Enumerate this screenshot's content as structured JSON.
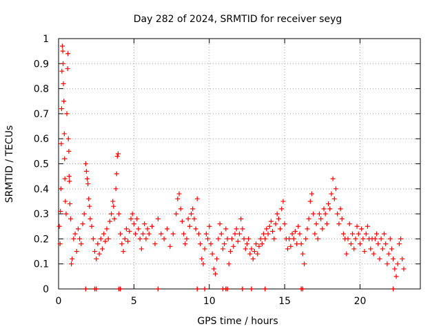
{
  "chart_data": {
    "type": "scatter",
    "title": "Day 282 of 2024, SRMTID for receiver seyg",
    "xlabel": "GPS time / hours",
    "ylabel": "SRMTID / TECUs",
    "xlim": [
      0,
      24
    ],
    "ylim": [
      0,
      1
    ],
    "xticks": [
      0,
      5,
      10,
      15,
      20
    ],
    "xtick_labels": [
      "0",
      "5",
      "10",
      "15",
      "20"
    ],
    "yticks": [
      0,
      0.1,
      0.2,
      0.3,
      0.4,
      0.5,
      0.6,
      0.7,
      0.8,
      0.9,
      1
    ],
    "ytick_labels": [
      "0",
      "0.1",
      "0.2",
      "0.3",
      "0.4",
      "0.5",
      "0.6",
      "0.7",
      "0.8",
      "0.9",
      "1"
    ],
    "grid": true,
    "marker": "+",
    "color": "#ff0000",
    "series": [
      {
        "name": "SRMTID",
        "points": [
          [
            0.05,
            0.25
          ],
          [
            0.1,
            0.18
          ],
          [
            0.12,
            0.31
          ],
          [
            0.15,
            0.4
          ],
          [
            0.18,
            0.58
          ],
          [
            0.2,
            0.72
          ],
          [
            0.22,
            0.87
          ],
          [
            0.25,
            0.97
          ],
          [
            0.28,
            0.95
          ],
          [
            0.3,
            0.9
          ],
          [
            0.32,
            0.82
          ],
          [
            0.35,
            0.75
          ],
          [
            0.38,
            0.62
          ],
          [
            0.4,
            0.52
          ],
          [
            0.42,
            0.44
          ],
          [
            0.45,
            0.35
          ],
          [
            0.5,
            0.3
          ],
          [
            0.55,
            0.7
          ],
          [
            0.6,
            0.88
          ],
          [
            0.62,
            0.94
          ],
          [
            0.65,
            0.6
          ],
          [
            0.68,
            0.55
          ],
          [
            0.7,
            0.45
          ],
          [
            0.72,
            0.43
          ],
          [
            0.75,
            0.34
          ],
          [
            0.8,
            0.28
          ],
          [
            0.85,
            0.1
          ],
          [
            0.9,
            0.12
          ],
          [
            1.0,
            0.2
          ],
          [
            1.1,
            0.22
          ],
          [
            1.2,
            0.15
          ],
          [
            1.3,
            0.24
          ],
          [
            1.4,
            0.2
          ],
          [
            1.5,
            0.18
          ],
          [
            1.6,
            0.26
          ],
          [
            1.7,
            0.3
          ],
          [
            1.8,
            0.5
          ],
          [
            1.85,
            0.47
          ],
          [
            1.9,
            0.44
          ],
          [
            1.95,
            0.42
          ],
          [
            2.0,
            0.36
          ],
          [
            2.05,
            0.33
          ],
          [
            2.1,
            0.28
          ],
          [
            2.2,
            0.25
          ],
          [
            2.3,
            0.2
          ],
          [
            2.4,
            0.15
          ],
          [
            2.5,
            0.12
          ],
          [
            2.6,
            0.18
          ],
          [
            2.7,
            0.14
          ],
          [
            2.8,
            0.2
          ],
          [
            2.9,
            0.16
          ],
          [
            3.0,
            0.22
          ],
          [
            3.1,
            0.19
          ],
          [
            3.2,
            0.24
          ],
          [
            3.3,
            0.2
          ],
          [
            3.4,
            0.27
          ],
          [
            3.5,
            0.3
          ],
          [
            3.6,
            0.35
          ],
          [
            3.65,
            0.33
          ],
          [
            3.7,
            0.28
          ],
          [
            3.8,
            0.4
          ],
          [
            3.85,
            0.46
          ],
          [
            3.9,
            0.53
          ],
          [
            3.95,
            0.54
          ],
          [
            4.0,
            0.3
          ],
          [
            4.1,
            0.22
          ],
          [
            4.2,
            0.18
          ],
          [
            4.3,
            0.15
          ],
          [
            4.4,
            0.2
          ],
          [
            4.5,
            0.24
          ],
          [
            4.6,
            0.19
          ],
          [
            4.7,
            0.23
          ],
          [
            4.8,
            0.28
          ],
          [
            4.9,
            0.3
          ],
          [
            5.0,
            0.26
          ],
          [
            5.1,
            0.22
          ],
          [
            5.2,
            0.28
          ],
          [
            5.3,
            0.24
          ],
          [
            5.4,
            0.2
          ],
          [
            5.5,
            0.16
          ],
          [
            5.6,
            0.22
          ],
          [
            5.7,
            0.26
          ],
          [
            5.8,
            0.2
          ],
          [
            5.9,
            0.24
          ],
          [
            6.0,
            0.22
          ],
          [
            6.2,
            0.25
          ],
          [
            6.4,
            0.18
          ],
          [
            6.6,
            0.28
          ],
          [
            6.8,
            0.22
          ],
          [
            7.0,
            0.2
          ],
          [
            7.2,
            0.24
          ],
          [
            7.4,
            0.17
          ],
          [
            7.6,
            0.22
          ],
          [
            7.8,
            0.3
          ],
          [
            7.9,
            0.36
          ],
          [
            8.0,
            0.38
          ],
          [
            8.1,
            0.32
          ],
          [
            8.2,
            0.27
          ],
          [
            8.3,
            0.22
          ],
          [
            8.4,
            0.18
          ],
          [
            8.5,
            0.2
          ],
          [
            8.6,
            0.28
          ],
          [
            8.7,
            0.25
          ],
          [
            8.8,
            0.3
          ],
          [
            8.9,
            0.32
          ],
          [
            9.0,
            0.28
          ],
          [
            9.1,
            0.24
          ],
          [
            9.2,
            0.36
          ],
          [
            9.3,
            0.22
          ],
          [
            9.4,
            0.18
          ],
          [
            9.5,
            0.12
          ],
          [
            9.6,
            0.1
          ],
          [
            9.7,
            0.16
          ],
          [
            9.8,
            0.22
          ],
          [
            9.9,
            0.2
          ],
          [
            10.0,
            0.25
          ],
          [
            10.1,
            0.18
          ],
          [
            10.2,
            0.14
          ],
          [
            10.3,
            0.08
          ],
          [
            10.4,
            0.06
          ],
          [
            10.5,
            0.12
          ],
          [
            10.6,
            0.2
          ],
          [
            10.7,
            0.26
          ],
          [
            10.8,
            0.22
          ],
          [
            10.9,
            0.16
          ],
          [
            11.0,
            0.18
          ],
          [
            11.1,
            0.24
          ],
          [
            11.2,
            0.2
          ],
          [
            11.3,
            0.1
          ],
          [
            11.4,
            0.15
          ],
          [
            11.5,
            0.2
          ],
          [
            11.6,
            0.17
          ],
          [
            11.7,
            0.22
          ],
          [
            11.8,
            0.24
          ],
          [
            11.9,
            0.19
          ],
          [
            12.0,
            0.22
          ],
          [
            12.1,
            0.28
          ],
          [
            12.2,
            0.24
          ],
          [
            12.3,
            0.2
          ],
          [
            12.4,
            0.16
          ],
          [
            12.5,
            0.18
          ],
          [
            12.6,
            0.2
          ],
          [
            12.7,
            0.14
          ],
          [
            12.8,
            0.16
          ],
          [
            12.9,
            0.12
          ],
          [
            13.0,
            0.15
          ],
          [
            13.1,
            0.18
          ],
          [
            13.2,
            0.14
          ],
          [
            13.3,
            0.17
          ],
          [
            13.4,
            0.2
          ],
          [
            13.5,
            0.18
          ],
          [
            13.6,
            0.22
          ],
          [
            13.7,
            0.2
          ],
          [
            13.8,
            0.24
          ],
          [
            13.9,
            0.22
          ],
          [
            14.0,
            0.25
          ],
          [
            14.1,
            0.27
          ],
          [
            14.2,
            0.23
          ],
          [
            14.3,
            0.2
          ],
          [
            14.4,
            0.26
          ],
          [
            14.5,
            0.3
          ],
          [
            14.6,
            0.28
          ],
          [
            14.7,
            0.24
          ],
          [
            14.8,
            0.32
          ],
          [
            14.9,
            0.35
          ],
          [
            15.0,
            0.26
          ],
          [
            15.1,
            0.2
          ],
          [
            15.2,
            0.16
          ],
          [
            15.3,
            0.2
          ],
          [
            15.4,
            0.17
          ],
          [
            15.5,
            0.22
          ],
          [
            15.6,
            0.2
          ],
          [
            15.7,
            0.23
          ],
          [
            15.8,
            0.18
          ],
          [
            15.9,
            0.25
          ],
          [
            16.0,
            0.22
          ],
          [
            16.1,
            0.18
          ],
          [
            16.2,
            0.14
          ],
          [
            16.3,
            0.1
          ],
          [
            16.4,
            0.2
          ],
          [
            16.5,
            0.24
          ],
          [
            16.6,
            0.28
          ],
          [
            16.7,
            0.35
          ],
          [
            16.8,
            0.38
          ],
          [
            16.9,
            0.3
          ],
          [
            17.0,
            0.22
          ],
          [
            17.1,
            0.26
          ],
          [
            17.2,
            0.2
          ],
          [
            17.3,
            0.3
          ],
          [
            17.4,
            0.28
          ],
          [
            17.5,
            0.24
          ],
          [
            17.6,
            0.32
          ],
          [
            17.7,
            0.3
          ],
          [
            17.8,
            0.26
          ],
          [
            17.9,
            0.34
          ],
          [
            18.0,
            0.32
          ],
          [
            18.1,
            0.38
          ],
          [
            18.2,
            0.44
          ],
          [
            18.3,
            0.36
          ],
          [
            18.4,
            0.4
          ],
          [
            18.5,
            0.3
          ],
          [
            18.6,
            0.26
          ],
          [
            18.7,
            0.32
          ],
          [
            18.8,
            0.28
          ],
          [
            18.9,
            0.22
          ],
          [
            19.0,
            0.2
          ],
          [
            19.1,
            0.14
          ],
          [
            19.2,
            0.2
          ],
          [
            19.3,
            0.26
          ],
          [
            19.4,
            0.18
          ],
          [
            19.5,
            0.22
          ],
          [
            19.6,
            0.16
          ],
          [
            19.7,
            0.2
          ],
          [
            19.8,
            0.25
          ],
          [
            19.9,
            0.22
          ],
          [
            20.0,
            0.18
          ],
          [
            20.1,
            0.24
          ],
          [
            20.2,
            0.2
          ],
          [
            20.3,
            0.15
          ],
          [
            20.4,
            0.22
          ],
          [
            20.5,
            0.25
          ],
          [
            20.6,
            0.2
          ],
          [
            20.7,
            0.16
          ],
          [
            20.8,
            0.2
          ],
          [
            20.9,
            0.14
          ],
          [
            21.0,
            0.2
          ],
          [
            21.1,
            0.22
          ],
          [
            21.2,
            0.18
          ],
          [
            21.3,
            0.12
          ],
          [
            21.4,
            0.2
          ],
          [
            21.5,
            0.16
          ],
          [
            21.6,
            0.22
          ],
          [
            21.7,
            0.18
          ],
          [
            21.8,
            0.1
          ],
          [
            21.9,
            0.14
          ],
          [
            22.0,
            0.2
          ],
          [
            22.1,
            0.16
          ],
          [
            22.2,
            0.12
          ],
          [
            22.3,
            0.08
          ],
          [
            22.4,
            0.05
          ],
          [
            22.5,
            0.1
          ],
          [
            22.6,
            0.18
          ],
          [
            22.7,
            0.2
          ],
          [
            22.8,
            0.12
          ],
          [
            22.9,
            0.08
          ]
        ]
      }
    ],
    "baseline_markers_x": [
      1.8,
      2.4,
      2.5,
      4.0,
      4.1,
      6.6,
      9.2,
      9.7,
      10.9,
      11.1,
      11.2,
      12.2,
      12.8,
      13.7,
      16.1,
      16.2,
      22.2
    ]
  }
}
